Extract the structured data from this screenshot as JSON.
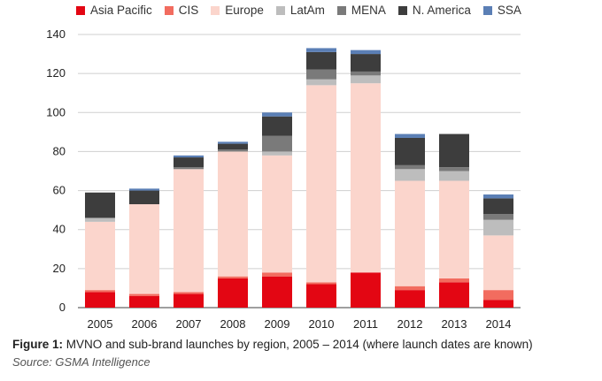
{
  "chart_data": {
    "type": "bar",
    "stacked": true,
    "categories": [
      "2005",
      "2006",
      "2007",
      "2008",
      "2009",
      "2010",
      "2011",
      "2012",
      "2013",
      "2014"
    ],
    "series": [
      {
        "name": "Asia Pacific",
        "color": "#e30613",
        "values": [
          8,
          6,
          7,
          15,
          16,
          12,
          18,
          9,
          13,
          4
        ]
      },
      {
        "name": "CIS",
        "color": "#f26c5f",
        "values": [
          1,
          1,
          1,
          1,
          2,
          1,
          0,
          2,
          2,
          5
        ]
      },
      {
        "name": "Europe",
        "color": "#fbd5cc",
        "values": [
          35,
          46,
          63,
          64,
          60,
          101,
          97,
          54,
          50,
          28
        ]
      },
      {
        "name": "LatAm",
        "color": "#bdbdbd",
        "values": [
          2,
          0,
          0,
          0,
          2,
          3,
          4,
          6,
          5,
          8
        ]
      },
      {
        "name": "MENA",
        "color": "#7a7a7a",
        "values": [
          0,
          0,
          1,
          1,
          8,
          5,
          2,
          2,
          2,
          3
        ]
      },
      {
        "name": "N. America",
        "color": "#3d3d3d",
        "values": [
          13,
          7,
          5,
          3,
          10,
          9,
          9,
          14,
          17,
          8
        ]
      },
      {
        "name": "SSA",
        "color": "#5b7fb5",
        "values": [
          0,
          1,
          1,
          1,
          2,
          2,
          2,
          2,
          0,
          2
        ]
      }
    ],
    "ylim": [
      0,
      140
    ],
    "yticks": [
      0,
      20,
      40,
      60,
      80,
      100,
      120,
      140
    ],
    "grid": true,
    "legend_position": "top"
  },
  "caption": {
    "label": "Figure 1:",
    "text": " MVNO and sub-brand launches by region, 2005 – 2014 (where launch dates are known)",
    "source": "Source: GSMA Intelligence"
  }
}
